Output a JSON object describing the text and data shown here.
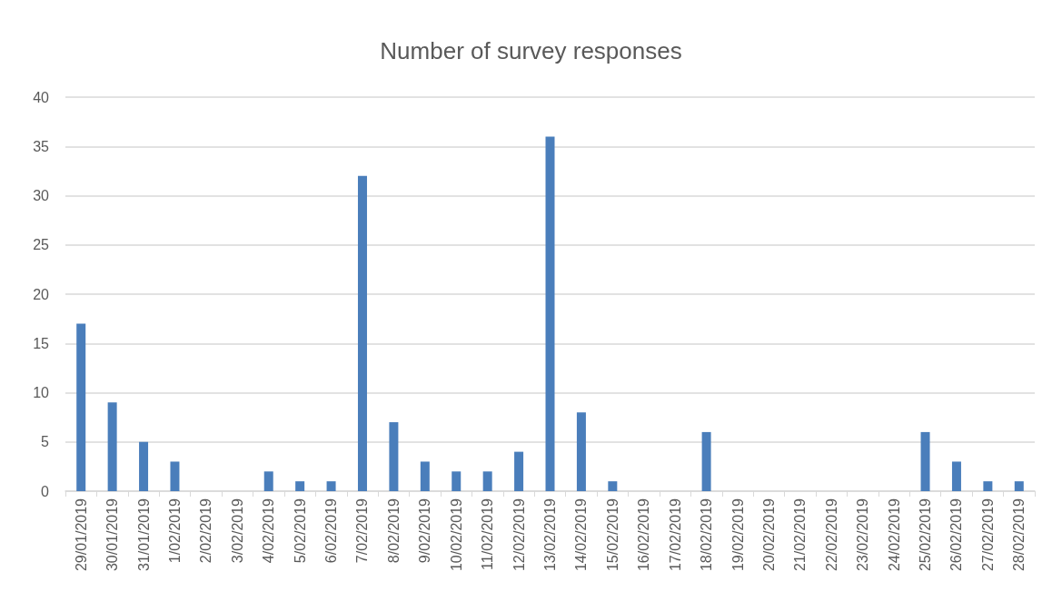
{
  "chart_data": {
    "type": "bar",
    "title": "Number of survey responses",
    "categories": [
      "29/01/2019",
      "30/01/2019",
      "31/01/2019",
      "1/02/2019",
      "2/02/2019",
      "3/02/2019",
      "4/02/2019",
      "5/02/2019",
      "6/02/2019",
      "7/02/2019",
      "8/02/2019",
      "9/02/2019",
      "10/02/2019",
      "11/02/2019",
      "12/02/2019",
      "13/02/2019",
      "14/02/2019",
      "15/02/2019",
      "16/02/2019",
      "17/02/2019",
      "18/02/2019",
      "19/02/2019",
      "20/02/2019",
      "21/02/2019",
      "22/02/2019",
      "23/02/2019",
      "24/02/2019",
      "25/02/2019",
      "26/02/2019",
      "27/02/2019",
      "28/02/2019"
    ],
    "values": [
      17,
      9,
      5,
      3,
      0,
      0,
      2,
      1,
      1,
      32,
      7,
      3,
      2,
      2,
      4,
      36,
      8,
      1,
      0,
      0,
      6,
      0,
      0,
      0,
      0,
      0,
      0,
      6,
      3,
      1,
      1
    ],
    "color": "#4a7ebb",
    "ylim": [
      0,
      40
    ],
    "yticks": [
      0,
      5,
      10,
      15,
      20,
      25,
      30,
      35,
      40
    ],
    "grid": "y"
  }
}
